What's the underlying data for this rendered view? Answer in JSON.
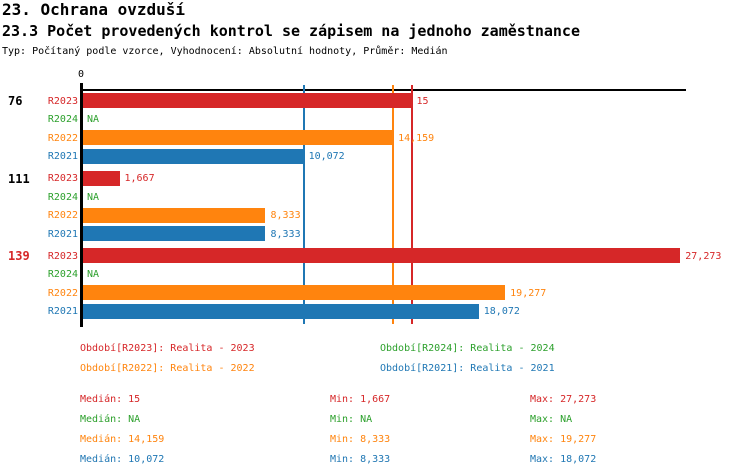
{
  "header": {
    "title": "23. Ochrana ovzduší",
    "subtitle": "23.3 Počet provedených kontrol se zápisem na jednoho zaměstnance",
    "meta": "Typ: Počítaný podle vzorce, Vyhodnocení: Absolutní hodnoty, Průměr: Medián"
  },
  "colors": {
    "R2023": "#d62728",
    "R2024": "#2ca02c",
    "R2022": "#ff840e",
    "R2021": "#1f77b4",
    "axis": "#000000",
    "group_default": "#000000",
    "group_highlight": "#d62728"
  },
  "chart_data": {
    "type": "bar",
    "orientation": "horizontal",
    "xlabel": "",
    "ylabel": "",
    "xlim": [
      0,
      27.5
    ],
    "axis_zero_label": "0",
    "na_text": "NA",
    "series_order": [
      "R2023",
      "R2024",
      "R2022",
      "R2021"
    ],
    "groups": [
      {
        "id": "76",
        "id_color": "#000000",
        "bars": [
          {
            "series": "R2023",
            "value": 15,
            "label": "15"
          },
          {
            "series": "R2024",
            "value": null,
            "label": "NA"
          },
          {
            "series": "R2022",
            "value": 14.159,
            "label": "14,159"
          },
          {
            "series": "R2021",
            "value": 10.072,
            "label": "10,072"
          }
        ]
      },
      {
        "id": "111",
        "id_color": "#000000",
        "bars": [
          {
            "series": "R2023",
            "value": 1.667,
            "label": "1,667"
          },
          {
            "series": "R2024",
            "value": null,
            "label": "NA"
          },
          {
            "series": "R2022",
            "value": 8.333,
            "label": "8,333"
          },
          {
            "series": "R2021",
            "value": 8.333,
            "label": "8,333"
          }
        ]
      },
      {
        "id": "139",
        "id_color": "#d62728",
        "bars": [
          {
            "series": "R2023",
            "value": 27.273,
            "label": "27,273"
          },
          {
            "series": "R2024",
            "value": null,
            "label": "NA"
          },
          {
            "series": "R2022",
            "value": 19.277,
            "label": "19,277"
          },
          {
            "series": "R2021",
            "value": 18.072,
            "label": "18,072"
          }
        ]
      }
    ],
    "median_lines": [
      {
        "series": "R2021",
        "value": 10.072,
        "color": "#1f77b4"
      },
      {
        "series": "R2022",
        "value": 14.159,
        "color": "#ff840e"
      },
      {
        "series": "R2023",
        "value": 15,
        "color": "#d62728"
      }
    ]
  },
  "legend": [
    {
      "series": "R2023",
      "label": "Období[R2023]: Realita - 2023",
      "color": "#d62728"
    },
    {
      "series": "R2024",
      "label": "Období[R2024]: Realita - 2024",
      "color": "#2ca02c"
    },
    {
      "series": "R2022",
      "label": "Období[R2022]: Realita - 2022",
      "color": "#ff840e"
    },
    {
      "series": "R2021",
      "label": "Období[R2021]: Realita - 2021",
      "color": "#1f77b4"
    }
  ],
  "stats": [
    {
      "series": "R2023",
      "color": "#d62728",
      "median": "Medián: 15",
      "min": "Min: 1,667",
      "max": "Max: 27,273"
    },
    {
      "series": "R2024",
      "color": "#2ca02c",
      "median": "Medián: NA",
      "min": "Min: NA",
      "max": "Max: NA"
    },
    {
      "series": "R2022",
      "color": "#ff840e",
      "median": "Medián: 14,159",
      "min": "Min: 8,333",
      "max": "Max: 19,277"
    },
    {
      "series": "R2021",
      "color": "#1f77b4",
      "median": "Medián: 10,072",
      "min": "Min: 8,333",
      "max": "Max: 18,072"
    }
  ]
}
